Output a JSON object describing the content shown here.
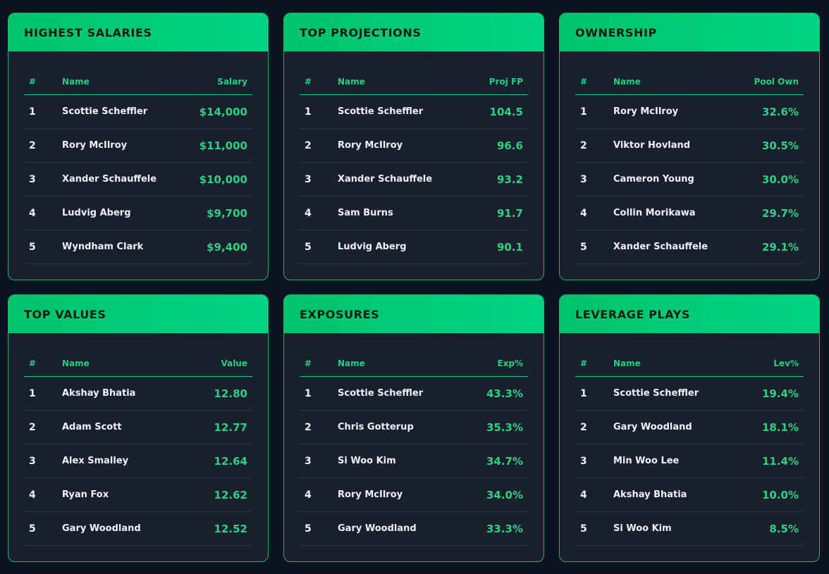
{
  "cards": [
    {
      "title": "HIGHEST SALARIES",
      "headers": {
        "rank": "#",
        "name": "Name",
        "value": "Salary"
      },
      "rows": [
        {
          "rank": "1",
          "name": "Scottie Scheffler",
          "value": "$14,000"
        },
        {
          "rank": "2",
          "name": "Rory McIlroy",
          "value": "$11,000"
        },
        {
          "rank": "3",
          "name": "Xander Schauffele",
          "value": "$10,000"
        },
        {
          "rank": "4",
          "name": "Ludvig Aberg",
          "value": "$9,700"
        },
        {
          "rank": "5",
          "name": "Wyndham Clark",
          "value": "$9,400"
        }
      ]
    },
    {
      "title": "TOP PROJECTIONS",
      "headers": {
        "rank": "#",
        "name": "Name",
        "value": "Proj FP"
      },
      "rows": [
        {
          "rank": "1",
          "name": "Scottie Scheffler",
          "value": "104.5"
        },
        {
          "rank": "2",
          "name": "Rory McIlroy",
          "value": "96.6"
        },
        {
          "rank": "3",
          "name": "Xander Schauffele",
          "value": "93.2"
        },
        {
          "rank": "4",
          "name": "Sam Burns",
          "value": "91.7"
        },
        {
          "rank": "5",
          "name": "Ludvig Aberg",
          "value": "90.1"
        }
      ]
    },
    {
      "title": "OWNERSHIP",
      "headers": {
        "rank": "#",
        "name": "Name",
        "value": "Pool Own"
      },
      "rows": [
        {
          "rank": "1",
          "name": "Rory McIlroy",
          "value": "32.6%"
        },
        {
          "rank": "2",
          "name": "Viktor Hovland",
          "value": "30.5%"
        },
        {
          "rank": "3",
          "name": "Cameron Young",
          "value": "30.0%"
        },
        {
          "rank": "4",
          "name": "Collin Morikawa",
          "value": "29.7%"
        },
        {
          "rank": "5",
          "name": "Xander Schauffele",
          "value": "29.1%"
        }
      ]
    },
    {
      "title": "TOP VALUES",
      "headers": {
        "rank": "#",
        "name": "Name",
        "value": "Value"
      },
      "rows": [
        {
          "rank": "1",
          "name": "Akshay Bhatia",
          "value": "12.80"
        },
        {
          "rank": "2",
          "name": "Adam Scott",
          "value": "12.77"
        },
        {
          "rank": "3",
          "name": "Alex Smalley",
          "value": "12.64"
        },
        {
          "rank": "4",
          "name": "Ryan Fox",
          "value": "12.62"
        },
        {
          "rank": "5",
          "name": "Gary Woodland",
          "value": "12.52"
        }
      ]
    },
    {
      "title": "EXPOSURES",
      "headers": {
        "rank": "#",
        "name": "Name",
        "value": "Exp%"
      },
      "rows": [
        {
          "rank": "1",
          "name": "Scottie Scheffler",
          "value": "43.3%"
        },
        {
          "rank": "2",
          "name": "Chris Gotterup",
          "value": "35.3%"
        },
        {
          "rank": "3",
          "name": "Si Woo Kim",
          "value": "34.7%"
        },
        {
          "rank": "4",
          "name": "Rory McIlroy",
          "value": "34.0%"
        },
        {
          "rank": "5",
          "name": "Gary Woodland",
          "value": "33.3%"
        }
      ]
    },
    {
      "title": "LEVERAGE PLAYS",
      "headers": {
        "rank": "#",
        "name": "Name",
        "value": "Lev%"
      },
      "rows": [
        {
          "rank": "1",
          "name": "Scottie Scheffler",
          "value": "19.4%"
        },
        {
          "rank": "2",
          "name": "Gary Woodland",
          "value": "18.1%"
        },
        {
          "rank": "3",
          "name": "Min Woo Lee",
          "value": "11.4%"
        },
        {
          "rank": "4",
          "name": "Akshay Bhatia",
          "value": "10.0%"
        },
        {
          "rank": "5",
          "name": "Si Woo Kim",
          "value": "8.5%"
        }
      ]
    }
  ],
  "colors": {
    "background": "#0d1322",
    "card": "#18202f",
    "accent": "#00c46a",
    "value_text": "#2fd17f",
    "header_text": "#1ed37e"
  }
}
